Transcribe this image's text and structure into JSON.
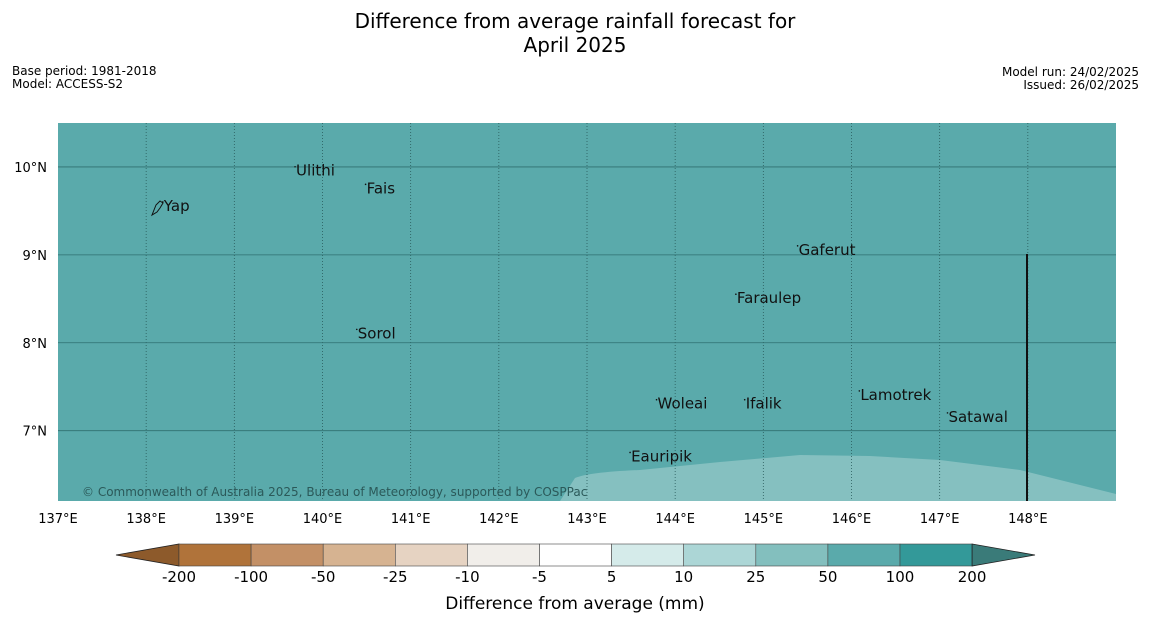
{
  "title": {
    "line1": "Difference from average rainfall forecast for",
    "line2": "April 2025"
  },
  "meta": {
    "base_period": "Base period: 1981-2018",
    "model": "Model: ACCESS-S2",
    "model_run": "Model run: 24/02/2025",
    "issued": "Issued: 26/02/2025"
  },
  "map": {
    "lon_range": [
      137,
      149
    ],
    "lat_range": [
      6.2,
      10.5
    ],
    "lon_ticks": [
      "137°E",
      "138°E",
      "139°E",
      "140°E",
      "141°E",
      "142°E",
      "143°E",
      "144°E",
      "145°E",
      "146°E",
      "147°E",
      "148°E"
    ],
    "lat_ticks": [
      "10°N",
      "9°N",
      "8°N",
      "7°N"
    ],
    "fill_color": "#5aaaab",
    "light_fill_color": "#85c0c0",
    "places": [
      {
        "name": "Yap",
        "lon": 138.2,
        "lat": 9.5
      },
      {
        "name": "Ulithi",
        "lon": 139.7,
        "lat": 9.9
      },
      {
        "name": "Fais",
        "lon": 140.5,
        "lat": 9.7
      },
      {
        "name": "Gaferut",
        "lon": 145.4,
        "lat": 9.0
      },
      {
        "name": "Faraulep",
        "lon": 144.7,
        "lat": 8.45
      },
      {
        "name": "Sorol",
        "lon": 140.4,
        "lat": 8.05
      },
      {
        "name": "Lamotrek",
        "lon": 146.1,
        "lat": 7.35
      },
      {
        "name": "Woleai",
        "lon": 143.8,
        "lat": 7.25
      },
      {
        "name": "Ifalik",
        "lon": 144.8,
        "lat": 7.25
      },
      {
        "name": "Satawal",
        "lon": 147.1,
        "lat": 7.1
      },
      {
        "name": "Eauripik",
        "lon": 143.5,
        "lat": 6.65
      }
    ],
    "copyright": "© Commonwealth of Australia 2025, Bureau of Meteorology, supported by COSPPac"
  },
  "colorbar": {
    "labels": [
      "-200",
      "-100",
      "-50",
      "-25",
      "-10",
      "-5",
      "5",
      "10",
      "25",
      "50",
      "100",
      "200"
    ],
    "colors": [
      "#8d5a2b",
      "#b0733a",
      "#c39066",
      "#d6b391",
      "#e6d3c2",
      "#f1eeea",
      "#ffffff",
      "#d5ebea",
      "#acd6d6",
      "#83bfbe",
      "#5aaaab",
      "#339999",
      "#3a7b79"
    ],
    "title": "Difference from average (mm)"
  }
}
